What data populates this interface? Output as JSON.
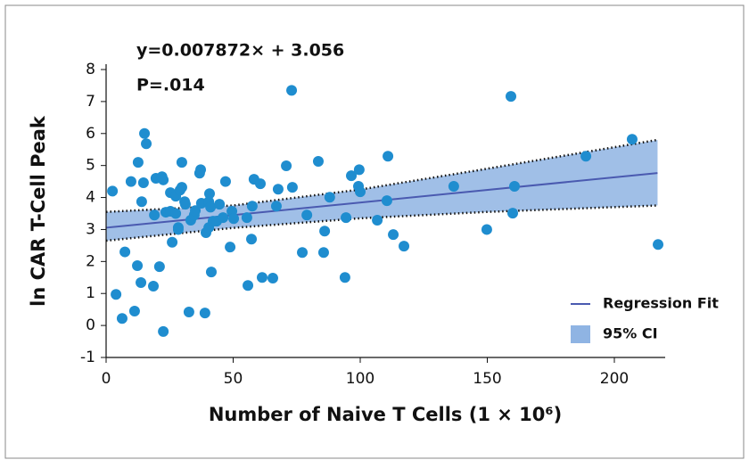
{
  "chart_data": {
    "type": "scatter",
    "annotations": [
      "y=0.007872× + 3.056",
      "P=.014"
    ],
    "x_label": "Number of Naive T Cells (1 × 10⁶)",
    "y_label": "ln CAR T-Cell Peak",
    "xlim": [
      0,
      220
    ],
    "xticks": [
      0,
      50,
      100,
      150,
      200
    ],
    "ylim": [
      -1,
      8
    ],
    "yticks": [
      -1,
      0,
      1,
      2,
      3,
      4,
      5,
      6,
      7,
      8
    ],
    "legend_position": "lower right",
    "series": [
      {
        "name": "points",
        "color": "#1f8dcf",
        "x": [
          2.5,
          3.9,
          6.3,
          7.4,
          9.8,
          11.2,
          12.3,
          12.6,
          13.7,
          14.0,
          14.7,
          15.1,
          15.8,
          19.0,
          18.6,
          19.6,
          21.0,
          22.0,
          22.5,
          22.5,
          23.5,
          25.3,
          25.3,
          26.0,
          27.4,
          27.4,
          28.4,
          28.4,
          29.1,
          29.8,
          29.8,
          30.9,
          31.2,
          32.6,
          33.3,
          34.7,
          35.1,
          36.8,
          37.2,
          37.5,
          38.9,
          39.3,
          40.4,
          40.4,
          40.7,
          41.1,
          41.4,
          42.1,
          43.5,
          44.6,
          46.0,
          47.0,
          48.8,
          49.5,
          50.2,
          55.4,
          55.8,
          57.2,
          57.5,
          58.2,
          60.7,
          61.4,
          65.6,
          67.0,
          67.7,
          70.9,
          73.0,
          73.3,
          77.2,
          79.0,
          83.5,
          85.6,
          86.0,
          88.0,
          94.0,
          94.4,
          96.5,
          99.3,
          99.6,
          100.0,
          106.7,
          110.5,
          110.9,
          113.0,
          117.2,
          136.8,
          149.8,
          159.3,
          160.0,
          160.7,
          188.8,
          207.0,
          217.2
        ],
        "values": [
          4.2,
          0.97,
          0.22,
          2.3,
          4.5,
          0.45,
          1.87,
          5.1,
          1.34,
          3.87,
          4.46,
          6.0,
          5.68,
          3.45,
          1.23,
          4.6,
          1.84,
          4.65,
          -0.19,
          4.55,
          3.54,
          4.15,
          3.57,
          2.6,
          3.5,
          4.04,
          3.06,
          3.0,
          4.23,
          5.1,
          4.32,
          3.87,
          3.79,
          0.42,
          3.29,
          3.45,
          3.59,
          4.76,
          4.87,
          3.82,
          0.39,
          2.9,
          3.06,
          3.87,
          4.12,
          3.7,
          1.67,
          3.26,
          3.26,
          3.79,
          3.37,
          4.5,
          2.45,
          3.57,
          3.34,
          3.37,
          1.25,
          2.7,
          3.73,
          4.57,
          4.43,
          1.5,
          1.48,
          3.73,
          4.26,
          4.99,
          7.35,
          4.32,
          2.28,
          3.45,
          5.13,
          2.28,
          2.95,
          4.01,
          1.5,
          3.37,
          4.68,
          4.35,
          4.87,
          4.18,
          3.29,
          3.9,
          5.29,
          2.84,
          2.48,
          4.35,
          3.0,
          7.16,
          3.51,
          4.35,
          5.29,
          5.82,
          2.53
        ]
      },
      {
        "name": "Regression Fit",
        "color": "#4a5ab0",
        "x": [
          0,
          217
        ],
        "values": [
          3.056,
          4.764
        ]
      },
      {
        "name": "95% CI",
        "color": "#8fb4e3",
        "x": [
          0,
          50,
          100,
          150,
          217
        ],
        "upper": [
          3.55,
          3.75,
          4.25,
          4.9,
          5.8
        ],
        "lower": [
          2.65,
          3.05,
          3.35,
          3.55,
          3.75
        ]
      }
    ]
  }
}
